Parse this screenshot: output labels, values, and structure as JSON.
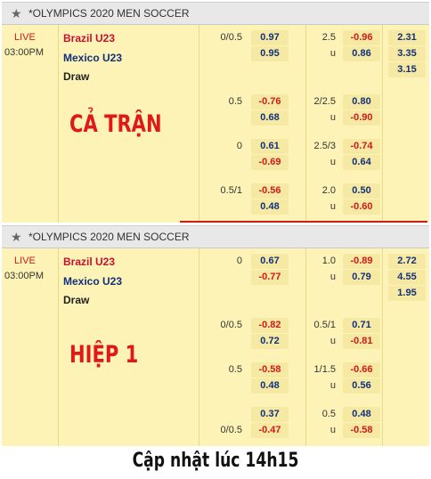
{
  "panels": [
    {
      "header": {
        "title": "*OLYMPICS 2020 MEN SOCCER",
        "icon": "star-icon"
      },
      "status": "LIVE",
      "time": "03:00PM",
      "teams": {
        "home": "Brazil U23",
        "away": "Mexico U23",
        "draw": "Draw"
      },
      "stamp": "CẢ TRẬN",
      "rows": [
        {
          "hdp": "0/0.5",
          "hdp_home": "0.97",
          "hdp_away": "0.95",
          "ou": "2.5",
          "over": "-0.96",
          "under_label": "u",
          "under": "0.86",
          "x12": [
            "2.31",
            "3.35",
            "3.15"
          ]
        },
        {
          "hdp": "0.5",
          "hdp_home": "-0.76",
          "hdp_away": "0.68",
          "ou": "2/2.5",
          "over": "0.80",
          "under_label": "u",
          "under": "-0.90"
        },
        {
          "hdp": "0",
          "hdp_home": "0.61",
          "hdp_away": "-0.69",
          "ou": "2.5/3",
          "over": "-0.74",
          "under_label": "u",
          "under": "0.64"
        },
        {
          "hdp": "0.5/1",
          "hdp_home": "-0.56",
          "hdp_away": "0.48",
          "ou": "2.0",
          "over": "0.50",
          "under_label": "u",
          "under": "-0.60"
        }
      ]
    },
    {
      "header": {
        "title": "*OLYMPICS 2020 MEN SOCCER",
        "icon": "star-icon"
      },
      "status": "LIVE",
      "time": "03:00PM",
      "teams": {
        "home": "Brazil U23",
        "away": "Mexico U23",
        "draw": "Draw"
      },
      "stamp": "HIỆP 1",
      "rows": [
        {
          "hdp": "0",
          "hdp_home": "0.67",
          "hdp_away": "-0.77",
          "ou": "1.0",
          "over": "-0.89",
          "under_label": "u",
          "under": "0.79",
          "x12": [
            "2.72",
            "4.55",
            "1.95"
          ]
        },
        {
          "hdp": "0/0.5",
          "hdp_home": "-0.82",
          "hdp_away": "0.72",
          "ou": "0.5/1",
          "over": "0.71",
          "under_label": "u",
          "under": "-0.81"
        },
        {
          "hdp": "0.5",
          "hdp_home": "-0.58",
          "hdp_away": "0.48",
          "ou": "1/1.5",
          "over": "-0.66",
          "under_label": "u",
          "under": "0.56"
        },
        {
          "hdp_home": "0.37",
          "hdp": "0/0.5",
          "hdp_away": "-0.47",
          "ou": "0.5",
          "over": "0.48",
          "under_label": "u",
          "under": "-0.58"
        }
      ]
    }
  ],
  "footer": "Cập nhật lúc 14h15",
  "colors": {
    "positive": "#12307a",
    "negative": "#d01a1a",
    "panel_bg": "#fdf3b6",
    "header_bg": "#e8e8e8"
  }
}
